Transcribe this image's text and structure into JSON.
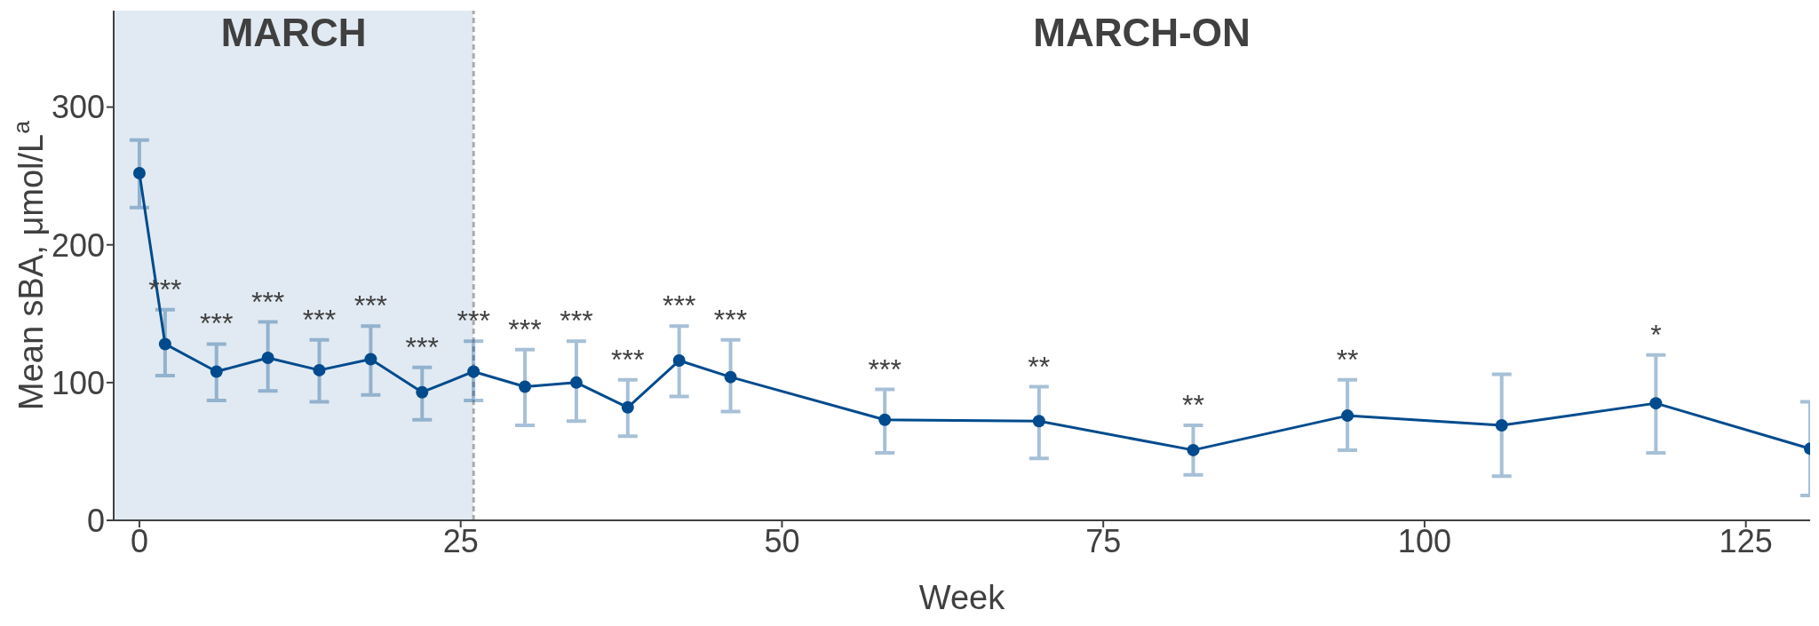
{
  "chart_data": {
    "type": "line",
    "xlabel": "Week",
    "ylabel": "Mean sBA, μmol/L$^{a}$",
    "x": [
      0,
      2,
      6,
      10,
      14,
      18,
      22,
      26,
      30,
      34,
      38,
      42,
      46,
      58,
      70,
      82,
      94,
      106,
      118,
      130
    ],
    "series": [
      {
        "color": "#004b8d",
        "values": [
          252,
          128,
          108,
          118,
          109,
          117,
          93,
          108,
          97,
          100,
          82,
          116,
          104,
          73,
          72,
          51,
          76,
          69,
          85,
          52
        ],
        "errors": [
          [
            227,
            276
          ],
          [
            105,
            153
          ],
          [
            87,
            128
          ],
          [
            94,
            144
          ],
          [
            86,
            131
          ],
          [
            91,
            141
          ],
          [
            73,
            111
          ],
          [
            87,
            130
          ],
          [
            69,
            124
          ],
          [
            72,
            130
          ],
          [
            61,
            102
          ],
          [
            90,
            141
          ],
          [
            79,
            131
          ],
          [
            49,
            95
          ],
          [
            45,
            97
          ],
          [
            33,
            69
          ],
          [
            51,
            102
          ],
          [
            32,
            106
          ],
          [
            49,
            120
          ],
          [
            18,
            86
          ]
        ]
      }
    ],
    "marker": "circle",
    "line_style": "solid",
    "xlim": [
      -2,
      130
    ],
    "xticks": [
      0,
      25,
      50,
      75,
      100,
      125
    ],
    "ylim": [
      0,
      370
    ],
    "yticks": [
      0,
      100,
      200,
      300
    ],
    "grid": false,
    "legend": false,
    "bands": [
      {
        "axis": "x",
        "from": -2,
        "to": 26,
        "label": "MARCH",
        "color": "#e1eaf2"
      }
    ],
    "ref_lines": [
      {
        "axis": "x",
        "value": 26,
        "color": "#aaaaaa",
        "line_style": "dashed"
      }
    ],
    "annotations": [
      "MARCH-ON",
      {
        "text": "***",
        "x": 2,
        "y": 153
      },
      {
        "text": "***",
        "x": 6,
        "y": 128
      },
      {
        "text": "***",
        "x": 10,
        "y": 144
      },
      {
        "text": "***",
        "x": 14,
        "y": 131
      },
      {
        "text": "***",
        "x": 18,
        "y": 141
      },
      {
        "text": "***",
        "x": 22,
        "y": 111
      },
      {
        "text": "***",
        "x": 26,
        "y": 130
      },
      {
        "text": "***",
        "x": 30,
        "y": 124
      },
      {
        "text": "***",
        "x": 34,
        "y": 130
      },
      {
        "text": "***",
        "x": 38,
        "y": 102
      },
      {
        "text": "***",
        "x": 42,
        "y": 141
      },
      {
        "text": "***",
        "x": 46,
        "y": 131
      },
      {
        "text": "***",
        "x": 58,
        "y": 95
      },
      {
        "text": "**",
        "x": 70,
        "y": 97
      },
      {
        "text": "**",
        "x": 82,
        "y": 69
      },
      {
        "text": "**",
        "x": 94,
        "y": 102
      },
      {
        "text": "*",
        "x": 118,
        "y": 120
      }
    ]
  }
}
